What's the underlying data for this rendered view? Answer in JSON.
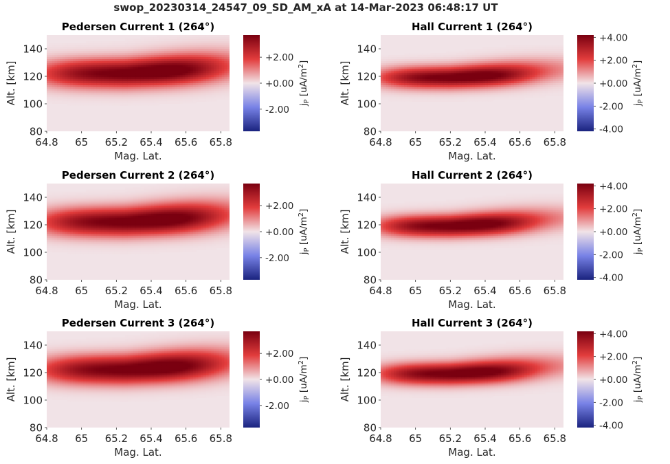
{
  "figure_title": "swop_20230314_24547_09_SD_AM_xA at 14-Mar-2023 06:48:17 UT",
  "colors": {
    "cmap_low": "#1a237e",
    "cmap_mid": "#f1e3e7",
    "cmap_high": "#7a0010",
    "background_value_color": "#f1e3e7"
  },
  "chart_data": [
    {
      "type": "heatmap",
      "title": "Pedersen Current 1 (264°)",
      "xlabel": "Mag. Lat.",
      "ylabel": "Alt. [km]",
      "xlim": [
        64.8,
        65.85
      ],
      "ylim": [
        80,
        150
      ],
      "xticks": [
        "64.8",
        "65",
        "65.2",
        "65.4",
        "65.6",
        "65.8"
      ],
      "yticks": [
        "80",
        "100",
        "120",
        "140"
      ],
      "colorbar": {
        "label": "j_P [uA/m^2]",
        "clim": [
          -3.7,
          3.7
        ],
        "ticks": [
          "+2.00",
          "+0.00",
          "-2.00"
        ]
      },
      "z_model": {
        "peak": 3.7,
        "center_lat": 65.25,
        "lat_halfwidth": 0.5,
        "center_alt": 122,
        "alt_halfwidth": 10,
        "plume_alt_shift": 3
      }
    },
    {
      "type": "heatmap",
      "title": "Hall Current 1 (264°)",
      "xlabel": "Mag. Lat.",
      "ylabel": "Alt. [km]",
      "xlim": [
        64.8,
        65.85
      ],
      "ylim": [
        80,
        150
      ],
      "xticks": [
        "64.8",
        "65",
        "65.2",
        "65.4",
        "65.6",
        "65.8"
      ],
      "yticks": [
        "80",
        "100",
        "120",
        "140"
      ],
      "colorbar": {
        "label": "j_P [uA/m^2]",
        "clim": [
          -4.2,
          4.2
        ],
        "ticks": [
          "+4.00",
          "+2.00",
          "+0.00",
          "-2.00",
          "-4.00"
        ]
      },
      "z_model": {
        "peak": 4.2,
        "center_lat": 65.2,
        "lat_halfwidth": 0.42,
        "center_alt": 119,
        "alt_halfwidth": 7.5,
        "plume_alt_shift": 2
      }
    },
    {
      "type": "heatmap",
      "title": "Pedersen Current 2 (264°)",
      "xlabel": "Mag. Lat.",
      "ylabel": "Alt. [km]",
      "xlim": [
        64.8,
        65.85
      ],
      "ylim": [
        80,
        150
      ],
      "xticks": [
        "64.8",
        "65",
        "65.2",
        "65.4",
        "65.6",
        "65.8"
      ],
      "yticks": [
        "80",
        "100",
        "120",
        "140"
      ],
      "colorbar": {
        "label": "j_P [uA/m^2]",
        "clim": [
          -3.7,
          3.7
        ],
        "ticks": [
          "+2.00",
          "+0.00",
          "-2.00"
        ]
      },
      "z_model": {
        "peak": 3.7,
        "center_lat": 65.25,
        "lat_halfwidth": 0.5,
        "center_alt": 122,
        "alt_halfwidth": 10,
        "plume_alt_shift": 3
      }
    },
    {
      "type": "heatmap",
      "title": "Hall Current 2 (264°)",
      "xlabel": "Mag. Lat.",
      "ylabel": "Alt. [km]",
      "xlim": [
        64.8,
        65.85
      ],
      "ylim": [
        80,
        150
      ],
      "xticks": [
        "64.8",
        "65",
        "65.2",
        "65.4",
        "65.6",
        "65.8"
      ],
      "yticks": [
        "80",
        "100",
        "120",
        "140"
      ],
      "colorbar": {
        "label": "j_P [uA/m^2]",
        "clim": [
          -4.2,
          4.2
        ],
        "ticks": [
          "+4.00",
          "+2.00",
          "+0.00",
          "-2.00",
          "-4.00"
        ]
      },
      "z_model": {
        "peak": 4.2,
        "center_lat": 65.2,
        "lat_halfwidth": 0.42,
        "center_alt": 119,
        "alt_halfwidth": 7.5,
        "plume_alt_shift": 2
      }
    },
    {
      "type": "heatmap",
      "title": "Pedersen Current 3 (264°)",
      "xlabel": "Mag. Lat.",
      "ylabel": "Alt. [km]",
      "xlim": [
        64.8,
        65.85
      ],
      "ylim": [
        80,
        150
      ],
      "xticks": [
        "64.8",
        "65",
        "65.2",
        "65.4",
        "65.6",
        "65.8"
      ],
      "yticks": [
        "80",
        "100",
        "120",
        "140"
      ],
      "colorbar": {
        "label": "j_P [uA/m^2]",
        "clim": [
          -3.7,
          3.7
        ],
        "ticks": [
          "+2.00",
          "+0.00",
          "-2.00"
        ]
      },
      "z_model": {
        "peak": 3.7,
        "center_lat": 65.25,
        "lat_halfwidth": 0.5,
        "center_alt": 122,
        "alt_halfwidth": 10,
        "plume_alt_shift": 3
      }
    },
    {
      "type": "heatmap",
      "title": "Hall Current 3 (264°)",
      "xlabel": "Mag. Lat.",
      "ylabel": "Alt. [km]",
      "xlim": [
        64.8,
        65.85
      ],
      "ylim": [
        80,
        150
      ],
      "xticks": [
        "64.8",
        "65",
        "65.2",
        "65.4",
        "65.6",
        "65.8"
      ],
      "yticks": [
        "80",
        "100",
        "120",
        "140"
      ],
      "colorbar": {
        "label": "j_P [uA/m^2]",
        "clim": [
          -4.2,
          4.2
        ],
        "ticks": [
          "+4.00",
          "+2.00",
          "+0.00",
          "-2.00",
          "-4.00"
        ]
      },
      "z_model": {
        "peak": 4.2,
        "center_lat": 65.2,
        "lat_halfwidth": 0.42,
        "center_alt": 119,
        "alt_halfwidth": 7.5,
        "plume_alt_shift": 2
      }
    }
  ]
}
